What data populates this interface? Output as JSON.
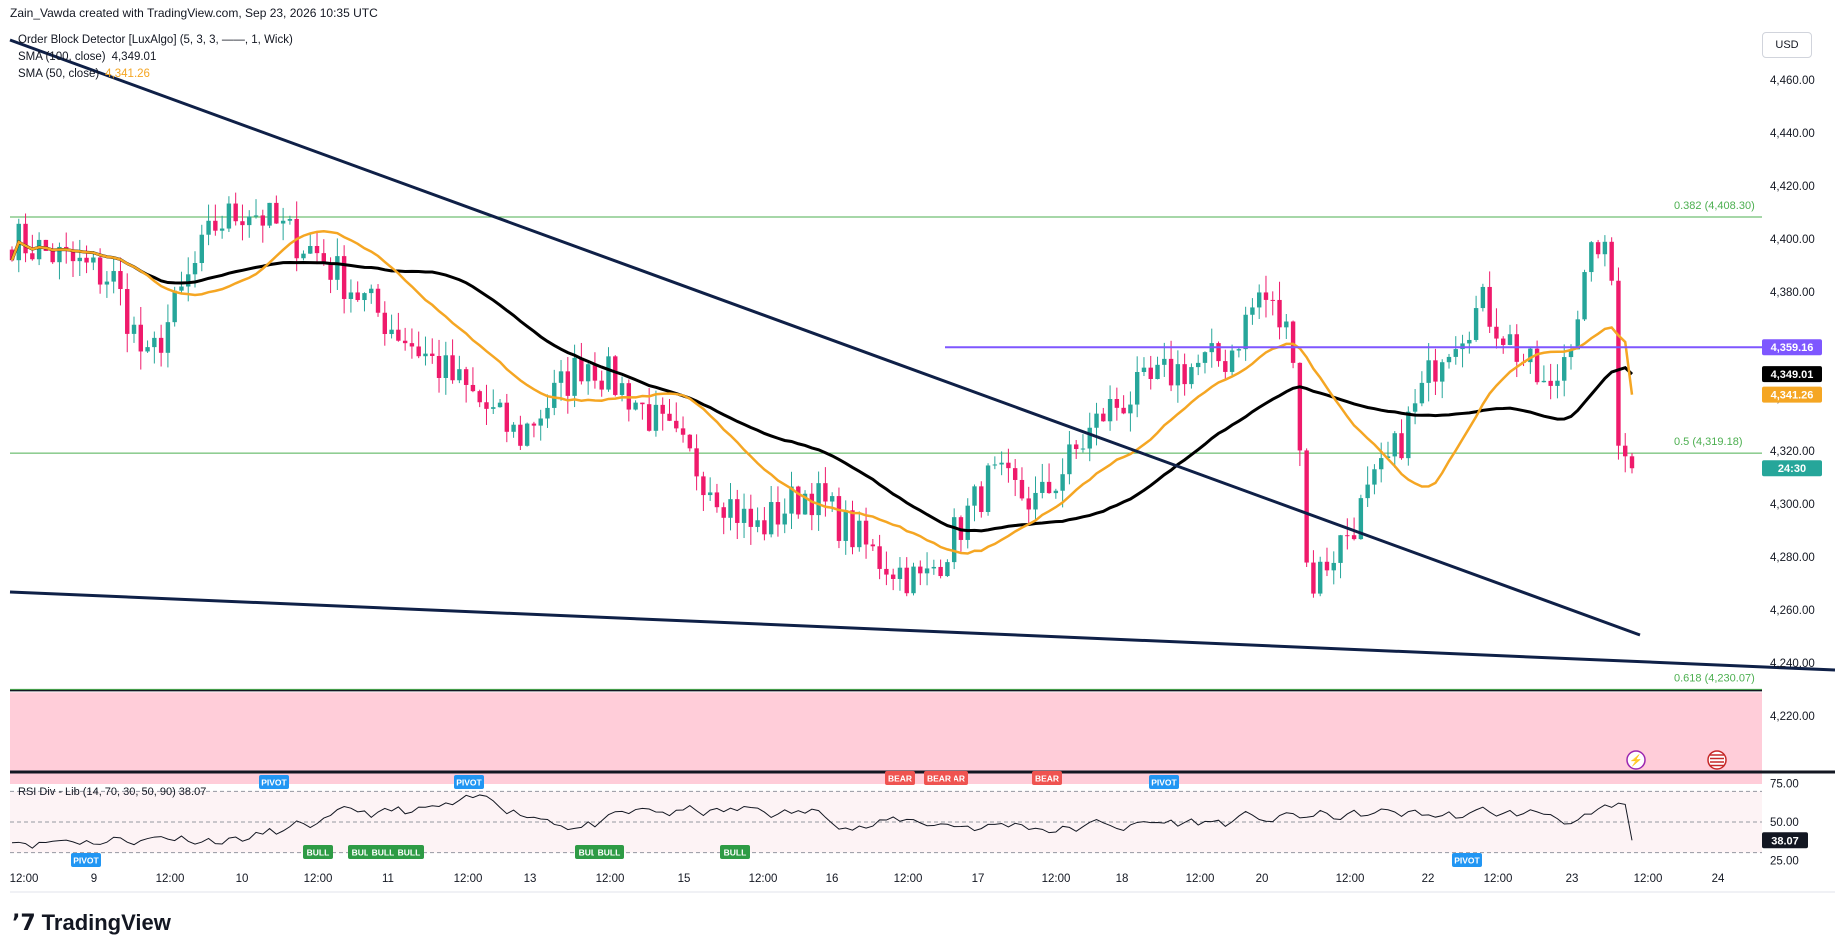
{
  "header": {
    "created_by": "Zain_Vawda created with TradingView.com, Sep 23, 2026 10:35 UTC"
  },
  "legend": [
    {
      "label": "Order Block Detector [LuxAlgo] (5, 3, 3, ——, 1, Wick)",
      "value": "",
      "color": "#131722"
    },
    {
      "label": "SMA (100, close)",
      "value": "4,349.01",
      "color": "#131722"
    },
    {
      "label": "SMA (50, close)",
      "value": "4,341.26",
      "color": "#f5a623"
    }
  ],
  "currency": "USD",
  "brand": "TradingView",
  "colors": {
    "up": "#26a69a",
    "down": "#ef1a6b",
    "sma100": "#000000",
    "sma50": "#f5a623",
    "trendline": "#0f2047",
    "resistance": "#7e57ff",
    "fib": "#4caf50",
    "ob_zone": "#ffcdd9",
    "rsi_line": "#131722",
    "bull_label": "#2e9b45",
    "bear_label": "#ef5350",
    "pivot_label": "#2196f3"
  },
  "chart_data": {
    "type": "candlestick",
    "symbol_ylabel": "USD",
    "ylim": [
      4200,
      4470
    ],
    "y_ticks": [
      "4,460.00",
      "4,440.00",
      "4,420.00",
      "4,400.00",
      "4,380.00",
      "4,360.00",
      "4,340.00",
      "4,320.00",
      "4,300.00",
      "4,280.00",
      "4,260.00",
      "4,240.00",
      "4,220.00"
    ],
    "x_ticks": [
      "12:00",
      "9",
      "12:00",
      "10",
      "12:00",
      "11",
      "12:00",
      "13",
      "12:00",
      "15",
      "12:00",
      "16",
      "12:00",
      "17",
      "12:00",
      "18",
      "12:00",
      "20",
      "12:00",
      "22",
      "12:00",
      "23",
      "12:00",
      "24"
    ],
    "price_labels": [
      {
        "text": "4,359.16",
        "value": 4359.16,
        "color": "#7e57ff"
      },
      {
        "text": "4,349.01",
        "value": 4349.01,
        "color": "#000000"
      },
      {
        "text": "4,341.26",
        "value": 4341.26,
        "color": "#f5a623"
      },
      {
        "text": "24:30",
        "value": 4313.5,
        "color": "#26a69a"
      }
    ],
    "fib_levels": [
      {
        "text": "0.382 (4,408.30)",
        "value": 4408.3
      },
      {
        "text": "0.5 (4,319.18)",
        "value": 4319.18
      },
      {
        "text": "0.618 (4,230.07)",
        "value": 4230.07
      }
    ],
    "resistance_level": 4359.16,
    "order_block_zone": {
      "top": 4230.07,
      "bottom": 4200
    },
    "last_close": 4313.5,
    "sma100_last": 4349.01,
    "sma50_last": 4341.26,
    "rsi": {
      "label": "RSI Div - Lib (14, 70, 30, 50, 90)",
      "value": "38.07",
      "ylim": [
        20,
        80
      ],
      "ticks": [
        "75.00",
        "50.00",
        "25.00"
      ],
      "signals": [
        {
          "text": "PIVOT",
          "kind": "pivot"
        },
        {
          "text": "PIVOT",
          "kind": "pivot"
        },
        {
          "text": "PIVOT",
          "kind": "pivot"
        },
        {
          "text": "BULL",
          "kind": "bull"
        },
        {
          "text": "BULL",
          "kind": "bull"
        },
        {
          "text": "BULL",
          "kind": "bull"
        },
        {
          "text": "BULL",
          "kind": "bull"
        },
        {
          "text": "BULL",
          "kind": "bull"
        },
        {
          "text": "BULL",
          "kind": "bull"
        },
        {
          "text": "BULL",
          "kind": "bull"
        },
        {
          "text": "BEAR",
          "kind": "bear"
        },
        {
          "text": "BEAR",
          "kind": "bear"
        },
        {
          "text": "BEAR",
          "kind": "bear"
        },
        {
          "text": "BEAR",
          "kind": "bear"
        },
        {
          "text": "PIVOT",
          "kind": "pivot"
        },
        {
          "text": "PIVOT",
          "kind": "pivot"
        }
      ]
    }
  }
}
